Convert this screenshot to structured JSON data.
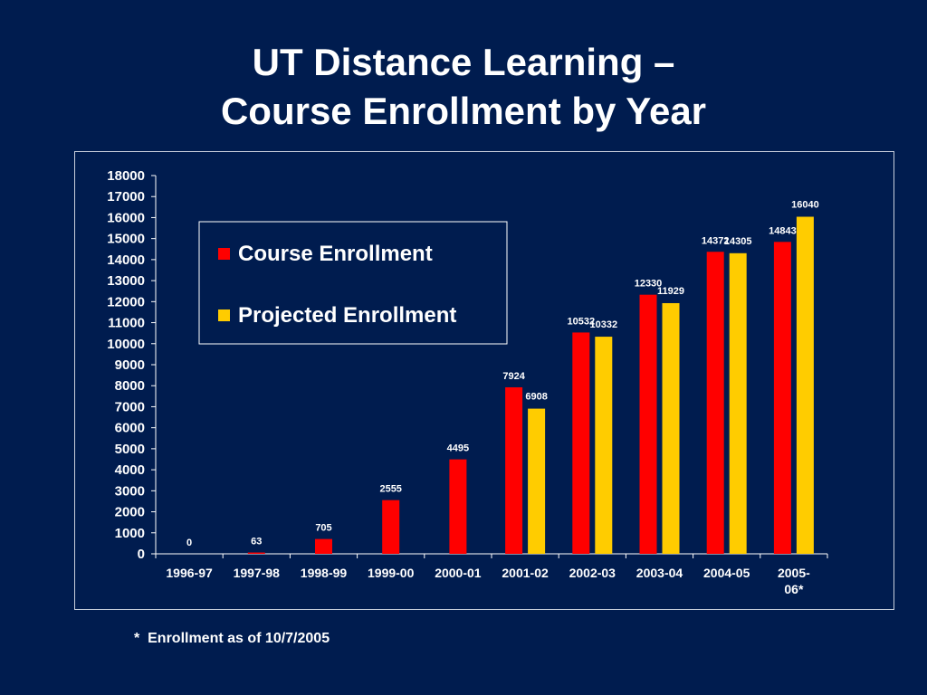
{
  "slide": {
    "title_line1": "UT Distance Learning –",
    "title_line2": "Course Enrollment by Year",
    "footnote": "*  Enrollment as of 10/7/2005"
  },
  "colors": {
    "background": "#001c4f",
    "course": "#ff0000",
    "projected": "#ffcc00",
    "text": "#ffffff"
  },
  "chart_data": {
    "type": "bar",
    "title": "",
    "xlabel": "",
    "ylabel": "",
    "ylim": [
      0,
      18000
    ],
    "ytick_step": 1000,
    "grid": false,
    "legend_position": "top-left",
    "categories": [
      "1996-97",
      "1997-98",
      "1998-99",
      "1999-00",
      "2000-01",
      "2001-02",
      "2002-03",
      "2003-04",
      "2004-05",
      "2005-06*"
    ],
    "category_labels": [
      [
        "1996-97"
      ],
      [
        "1997-98"
      ],
      [
        "1998-99"
      ],
      [
        "1999-00"
      ],
      [
        "2000-01"
      ],
      [
        "2001-02"
      ],
      [
        "2002-03"
      ],
      [
        "2003-04"
      ],
      [
        "2004-05"
      ],
      [
        "2005-",
        "06*"
      ]
    ],
    "series": [
      {
        "name": "Course Enrollment",
        "color": "#ff0000",
        "values": [
          0,
          63,
          705,
          2555,
          4495,
          7924,
          10532,
          12330,
          14372,
          14843
        ]
      },
      {
        "name": "Projected Enrollment",
        "color": "#ffcc00",
        "values": [
          null,
          null,
          null,
          null,
          null,
          6908,
          10332,
          11929,
          14305,
          16040
        ]
      }
    ]
  }
}
